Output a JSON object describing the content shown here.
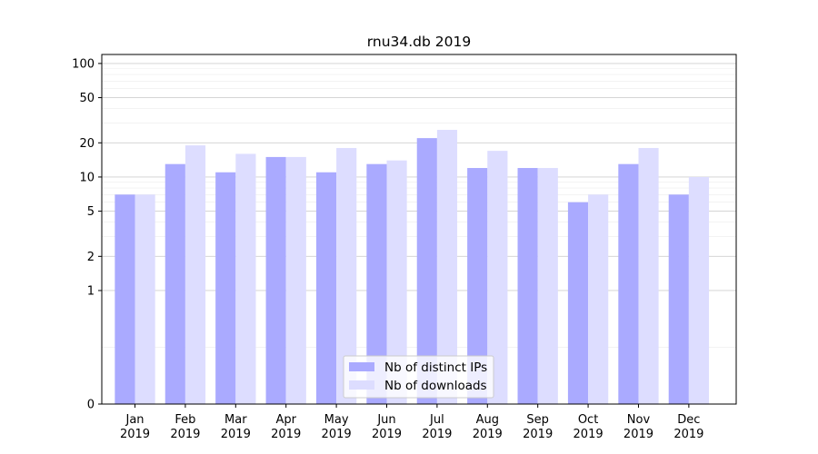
{
  "chart_data": {
    "type": "bar",
    "title": "rnu34.db 2019",
    "xlabel": "",
    "ylabel": "",
    "y_scale": "symlog",
    "ylim": [
      0,
      120
    ],
    "yticks": [
      0,
      1,
      2,
      5,
      10,
      20,
      50,
      100
    ],
    "ytick_labels": [
      "0",
      "1",
      "2",
      "5",
      "10",
      "20",
      "50",
      "100"
    ],
    "categories": [
      [
        "Jan",
        "2019"
      ],
      [
        "Feb",
        "2019"
      ],
      [
        "Mar",
        "2019"
      ],
      [
        "Apr",
        "2019"
      ],
      [
        "May",
        "2019"
      ],
      [
        "Jun",
        "2019"
      ],
      [
        "Jul",
        "2019"
      ],
      [
        "Aug",
        "2019"
      ],
      [
        "Sep",
        "2019"
      ],
      [
        "Oct",
        "2019"
      ],
      [
        "Nov",
        "2019"
      ],
      [
        "Dec",
        "2019"
      ]
    ],
    "series": [
      {
        "name": "Nb of distinct IPs",
        "color": "#aaaaff",
        "values": [
          7,
          13,
          11,
          15,
          11,
          13,
          22,
          12,
          12,
          6,
          13,
          7
        ]
      },
      {
        "name": "Nb of downloads",
        "color": "#ddddff",
        "values": [
          7,
          19,
          16,
          15,
          18,
          14,
          26,
          17,
          12,
          7,
          18,
          10
        ]
      }
    ],
    "grid": "horizontal",
    "legend_position": "bottom-center"
  }
}
